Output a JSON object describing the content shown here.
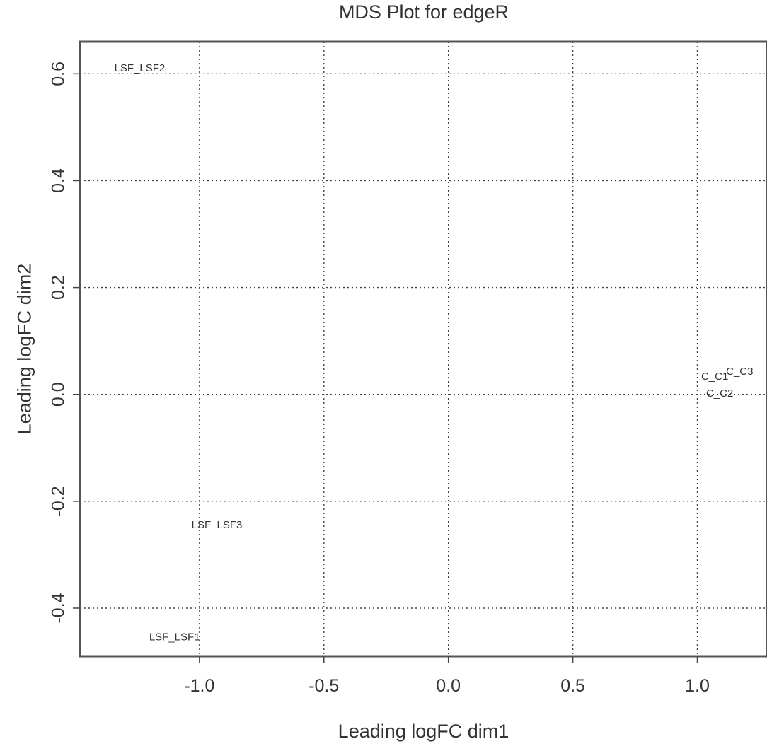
{
  "chart_data": {
    "type": "scatter",
    "title": "MDS Plot for edgeR",
    "xlabel": "Leading logFC dim1",
    "ylabel": "Leading logFC dim2",
    "xlim": [
      -1.48,
      1.28
    ],
    "ylim": [
      -0.49,
      0.66
    ],
    "xticks": [
      -1.0,
      -0.5,
      0.0,
      0.5,
      1.0
    ],
    "xtick_labels": [
      "-1.0",
      "-0.5",
      "0.0",
      "0.5",
      "1.0"
    ],
    "yticks": [
      -0.4,
      -0.2,
      0.0,
      0.2,
      0.4,
      0.6
    ],
    "ytick_labels": [
      "-0.4",
      "-0.2",
      "0.0",
      "0.2",
      "0.4",
      "0.6"
    ],
    "grid": true,
    "points": [
      {
        "label": "LSF_LSF2",
        "x": -1.24,
        "y": 0.61
      },
      {
        "label": "LSF_LSF3",
        "x": -0.93,
        "y": -0.245
      },
      {
        "label": "LSF_LSF1",
        "x": -1.1,
        "y": -0.455
      },
      {
        "label": "C_C1",
        "x": 1.07,
        "y": 0.033
      },
      {
        "label": "C_C3",
        "x": 1.17,
        "y": 0.042
      },
      {
        "label": "C_C2",
        "x": 1.09,
        "y": 0.001
      }
    ]
  }
}
